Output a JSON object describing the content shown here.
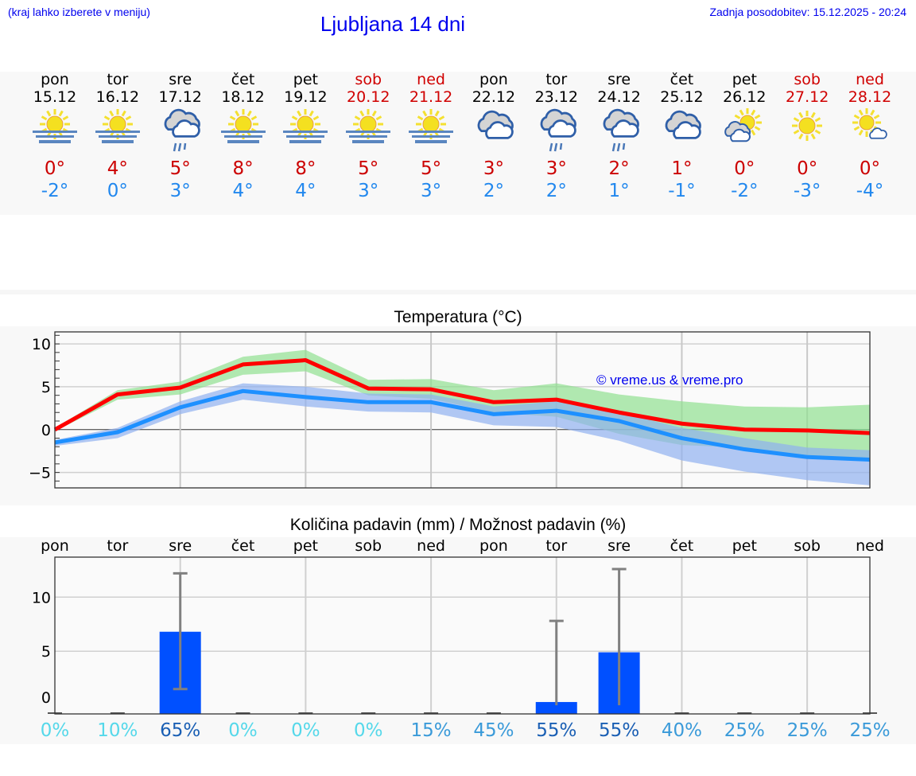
{
  "header": {
    "hint": "(kraj lahko izberete v meniju)",
    "title": "Ljubljana 14 dni",
    "updated": "Zadnja posodobitev: 15.12.2025 - 20:24"
  },
  "colors": {
    "weekend": "#d00000",
    "weekday": "#000000",
    "tmax": "#cc0000",
    "tmin": "#2288ee",
    "bar": "#0050ff",
    "max_line": "#ff0000",
    "min_line": "#1e90ff"
  },
  "days": [
    {
      "name": "pon",
      "date": "15.12",
      "weekend": false,
      "icon": "sun-fog-icon",
      "tmax": "0°",
      "tmin": "-2°"
    },
    {
      "name": "tor",
      "date": "16.12",
      "weekend": false,
      "icon": "sun-fog-icon",
      "tmax": "4°",
      "tmin": "0°"
    },
    {
      "name": "sre",
      "date": "17.12",
      "weekend": false,
      "icon": "rain-cloud-icon",
      "tmax": "5°",
      "tmin": "3°"
    },
    {
      "name": "čet",
      "date": "18.12",
      "weekend": false,
      "icon": "sun-fog-icon",
      "tmax": "8°",
      "tmin": "4°"
    },
    {
      "name": "pet",
      "date": "19.12",
      "weekend": false,
      "icon": "sun-fog-icon",
      "tmax": "8°",
      "tmin": "4°"
    },
    {
      "name": "sob",
      "date": "20.12",
      "weekend": true,
      "icon": "sun-fog-icon",
      "tmax": "5°",
      "tmin": "3°"
    },
    {
      "name": "ned",
      "date": "21.12",
      "weekend": true,
      "icon": "sun-fog-icon",
      "tmax": "5°",
      "tmin": "3°"
    },
    {
      "name": "pon",
      "date": "22.12",
      "weekend": false,
      "icon": "cloud-icon",
      "tmax": "3°",
      "tmin": "2°"
    },
    {
      "name": "tor",
      "date": "23.12",
      "weekend": false,
      "icon": "rain-cloud-icon",
      "tmax": "3°",
      "tmin": "2°"
    },
    {
      "name": "sre",
      "date": "24.12",
      "weekend": false,
      "icon": "rain-cloud-icon",
      "tmax": "2°",
      "tmin": "1°"
    },
    {
      "name": "čet",
      "date": "25.12",
      "weekend": false,
      "icon": "cloud-icon",
      "tmax": "1°",
      "tmin": "-1°"
    },
    {
      "name": "pet",
      "date": "26.12",
      "weekend": false,
      "icon": "cloud-sun-icon",
      "tmax": "0°",
      "tmin": "-2°"
    },
    {
      "name": "sob",
      "date": "27.12",
      "weekend": true,
      "icon": "sun-icon",
      "tmax": "0°",
      "tmin": "-3°"
    },
    {
      "name": "ned",
      "date": "28.12",
      "weekend": true,
      "icon": "sun-small-cloud-icon",
      "tmax": "0°",
      "tmin": "-4°"
    }
  ],
  "chart_data": [
    {
      "type": "line",
      "title": "Temperatura (°C)",
      "watermark": "© vreme.us & vreme.pro",
      "x": [
        "15.12",
        "16.12",
        "17.12",
        "18.12",
        "19.12",
        "20.12",
        "21.12",
        "22.12",
        "23.12",
        "24.12",
        "25.12",
        "26.12",
        "27.12",
        "28.12"
      ],
      "ylim": [
        -6.8,
        11.4
      ],
      "yticks": [
        "10",
        "5",
        "0",
        "−5"
      ],
      "ytick_values": [
        10,
        5,
        0,
        -5
      ],
      "grid": true,
      "series": [
        {
          "key": "max",
          "color": "#ff0000",
          "values": [
            0,
            4.1,
            4.9,
            7.6,
            8.1,
            4.8,
            4.7,
            3.2,
            3.5,
            2.0,
            0.7,
            0.0,
            -0.1,
            -0.4
          ],
          "band_color": "#90e090",
          "band_upper": [
            0.2,
            4.6,
            5.6,
            8.5,
            9.3,
            5.8,
            5.9,
            4.6,
            5.4,
            4.1,
            3.3,
            2.7,
            2.6,
            2.9
          ],
          "band_lower": [
            -0.2,
            3.5,
            4.1,
            6.4,
            6.8,
            4.0,
            3.6,
            2.0,
            1.5,
            -0.5,
            -1.8,
            -2.1,
            -3.3,
            -3.3
          ]
        },
        {
          "key": "min",
          "color": "#1e90ff",
          "values": [
            -1.5,
            -0.3,
            2.6,
            4.5,
            3.8,
            3.2,
            3.2,
            1.8,
            2.2,
            1.0,
            -1.0,
            -2.3,
            -3.2,
            -3.5
          ],
          "band_color": "#90b0f0",
          "band_upper": [
            -1.2,
            0.2,
            3.3,
            5.4,
            5.0,
            4.2,
            4.1,
            2.7,
            3.3,
            2.0,
            0.2,
            -1.0,
            -2.1,
            -2.4
          ],
          "band_lower": [
            -1.9,
            -1.0,
            1.8,
            3.5,
            2.7,
            2.1,
            2.0,
            0.5,
            0.3,
            -1.3,
            -3.6,
            -4.9,
            -5.9,
            -6.5
          ]
        }
      ]
    },
    {
      "type": "bar",
      "title": "Količina padavin (mm) / Možnost padavin (%)",
      "categories": [
        "pon",
        "tor",
        "sre",
        "čet",
        "pet",
        "sob",
        "ned",
        "pon",
        "tor",
        "sre",
        "čet",
        "pet",
        "sob",
        "ned"
      ],
      "values": [
        0,
        0,
        6.8,
        0,
        0,
        0,
        0,
        0,
        0.3,
        4.9,
        0,
        0,
        0,
        0
      ],
      "error_low": [
        0,
        0,
        1.5,
        0,
        0,
        0,
        0,
        0,
        0,
        0,
        0,
        0,
        0,
        0
      ],
      "error_high": [
        0,
        0,
        12.2,
        0,
        0,
        0,
        0,
        0,
        7.8,
        12.6,
        0,
        0,
        0,
        0
      ],
      "probability": [
        "0%",
        "10%",
        "65%",
        "0%",
        "0%",
        "0%",
        "15%",
        "45%",
        "55%",
        "55%",
        "40%",
        "25%",
        "25%",
        "25%"
      ],
      "probability_colors": [
        "#55d8ea",
        "#55d8ea",
        "#1a5fb4",
        "#55d8ea",
        "#55d8ea",
        "#55d8ea",
        "#3a9ad9",
        "#3a9ad9",
        "#1a5fb4",
        "#1a5fb4",
        "#3a9ad9",
        "#3a9ad9",
        "#3a9ad9",
        "#3a9ad9"
      ],
      "ylim": [
        -0.8,
        13.7
      ],
      "yticks": [
        "10",
        "5",
        "0"
      ],
      "ytick_values": [
        10,
        5,
        0
      ],
      "grid": true
    }
  ]
}
